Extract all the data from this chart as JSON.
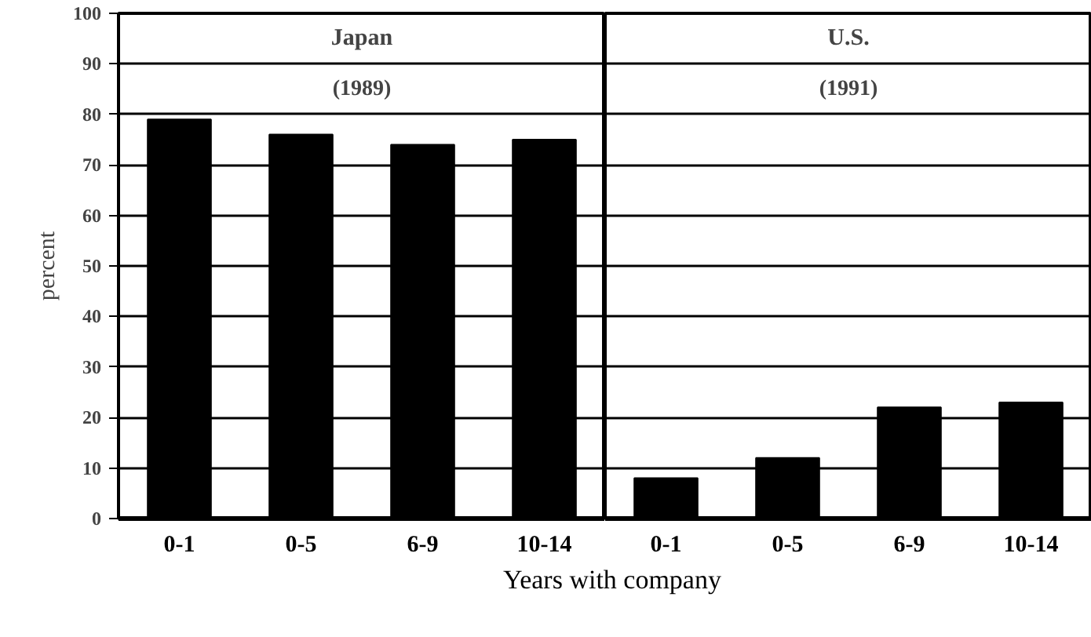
{
  "chart_data": [
    {
      "type": "bar",
      "title": "Japan",
      "subtitle": "(1989)",
      "ylabel": "percent",
      "xlabel": "Years with company",
      "categories": [
        "0-1",
        "0-5",
        "6-9",
        "10-14"
      ],
      "values": [
        79,
        76,
        74,
        75
      ],
      "color": "#000000",
      "ylim": [
        0,
        100
      ],
      "yticks": [
        0,
        10,
        20,
        30,
        40,
        50,
        60,
        70,
        80,
        90,
        100
      ],
      "grid": "y"
    },
    {
      "type": "bar",
      "title": "U.S.",
      "subtitle": "(1991)",
      "categories": [
        "0-1",
        "0-5",
        "6-9",
        "10-14"
      ],
      "values": [
        8,
        12,
        22,
        23
      ],
      "color": "#000000",
      "ylim": [
        0,
        100
      ],
      "yticks": [
        0,
        10,
        20,
        30,
        40,
        50,
        60,
        70,
        80,
        90,
        100
      ],
      "grid": "y",
      "tick_labels": "x"
    }
  ]
}
